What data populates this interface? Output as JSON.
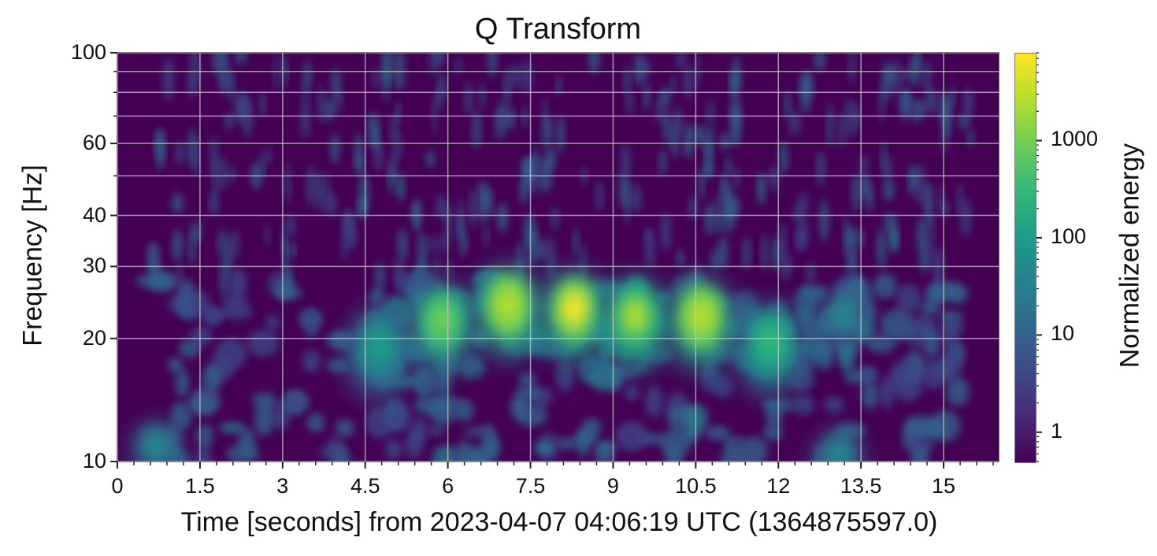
{
  "chart_data": {
    "type": "heatmap",
    "title": "Q Transform",
    "xlabel": "Time [seconds] from 2023-04-07 04:06:19 UTC (1364875597.0)",
    "ylabel": "Frequency [Hz]",
    "colorbar_label": "Normalized energy",
    "colormap": "viridis",
    "xlim": [
      0,
      16
    ],
    "ylim": [
      10,
      100
    ],
    "yscale": "log",
    "x_ticks": [
      0,
      1.5,
      3,
      4.5,
      6,
      7.5,
      9,
      10.5,
      12,
      13.5,
      15
    ],
    "x_tick_labels": [
      "0",
      "1.5",
      "3",
      "4.5",
      "6",
      "7.5",
      "9",
      "10.5",
      "12",
      "13.5",
      "15"
    ],
    "x_minor_step": 0.3,
    "y_ticks": [
      10,
      20,
      30,
      40,
      60,
      100
    ],
    "y_tick_labels": [
      "10",
      "20",
      "30",
      "40",
      "60",
      "100"
    ],
    "y_grid": [
      10,
      20,
      30,
      40,
      50,
      60,
      70,
      80,
      90,
      100
    ],
    "grid": true,
    "colorbar_scale": "log",
    "colorbar_range": [
      0.5,
      8000
    ],
    "colorbar_ticks": [
      1,
      10,
      100,
      1000
    ],
    "colorbar_tick_labels": [
      "1",
      "10",
      "100",
      "1000"
    ],
    "features": [
      {
        "t": 0.7,
        "f": 11.0,
        "energy": 20,
        "desc": "low-frequency noise blob"
      },
      {
        "t": 4.75,
        "f": 19.0,
        "energy": 150,
        "desc": "chirp lobe"
      },
      {
        "t": 5.9,
        "f": 22.0,
        "energy": 1500,
        "desc": "chirp lobe"
      },
      {
        "t": 7.1,
        "f": 24.0,
        "energy": 4000,
        "desc": "chirp lobe"
      },
      {
        "t": 8.3,
        "f": 23.5,
        "energy": 6000,
        "desc": "chirp lobe (peak)"
      },
      {
        "t": 9.4,
        "f": 22.5,
        "energy": 2500,
        "desc": "chirp lobe"
      },
      {
        "t": 10.6,
        "f": 22.5,
        "energy": 4000,
        "desc": "chirp lobe"
      },
      {
        "t": 11.85,
        "f": 19.5,
        "energy": 400,
        "desc": "chirp lobe"
      },
      {
        "t": 13.2,
        "f": 23.0,
        "energy": 60,
        "desc": "noise blob"
      },
      {
        "t": 13.1,
        "f": 10.5,
        "energy": 25,
        "desc": "low-frequency noise blob"
      }
    ],
    "background_energy": 0.6
  }
}
